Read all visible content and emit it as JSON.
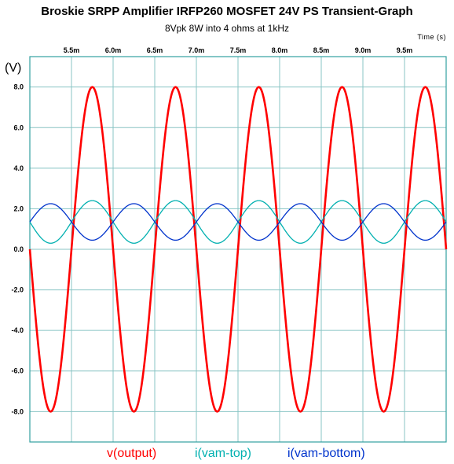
{
  "chart_data": {
    "type": "line",
    "title": "Broskie SRPP Amplifier IRFP260 MOSFET 24V PS Transient-Graph",
    "subtitle": "8Vpk 8W into 4 ohms at 1kHz",
    "xlabel": "Time   (s)",
    "ylabel": "(V)",
    "xlim": [
      5.0,
      10.0
    ],
    "ylim": [
      -9.5,
      9.5
    ],
    "x_unit": "ms",
    "x_ticks": [
      5.5,
      6.0,
      6.5,
      7.0,
      7.5,
      8.0,
      8.5,
      9.0,
      9.5
    ],
    "x_tick_labels": [
      "5.5m",
      "6.0m",
      "6.5m",
      "7.0m",
      "7.5m",
      "8.0m",
      "8.5m",
      "9.0m",
      "9.5m"
    ],
    "y_ticks": [
      8,
      6,
      4,
      2,
      0,
      -2,
      -4,
      -6,
      -8
    ],
    "y_tick_labels": [
      "8.0",
      "6.0",
      "4.0",
      "2.0",
      "0.0",
      "-2.0",
      "-4.0",
      "-6.0",
      "-8.0"
    ],
    "grid": true,
    "series": [
      {
        "name": "v(output)",
        "color": "#ff0000",
        "kind": "sine",
        "amplitude": 8.0,
        "offset": 0.0,
        "frequency_khz": 1.0,
        "peaks_ms": [
          5.75,
          6.75,
          7.75,
          8.75,
          9.75
        ],
        "troughs_ms": [
          5.25,
          6.25,
          7.25,
          8.25,
          9.25
        ]
      },
      {
        "name": "i(vam-top)",
        "color": "#00b0b0",
        "kind": "sine",
        "amplitude": 1.05,
        "offset": 1.35,
        "frequency_khz": 1.0,
        "peaks_ms": [
          5.75,
          6.75,
          7.75,
          8.75,
          9.75
        ],
        "troughs_ms": [
          5.25,
          6.25,
          7.25,
          8.25,
          9.25
        ]
      },
      {
        "name": "i(vam-bottom)",
        "color": "#0033cc",
        "kind": "sine",
        "amplitude": 0.9,
        "offset": 1.35,
        "frequency_khz": 1.0,
        "peaks_ms": [
          5.25,
          6.25,
          7.25,
          8.25,
          9.25
        ],
        "troughs_ms": [
          5.75,
          6.75,
          7.75,
          8.75,
          9.75
        ]
      }
    ]
  },
  "colors": {
    "grid": "#88c4c4",
    "frame": "#33a0a0"
  }
}
